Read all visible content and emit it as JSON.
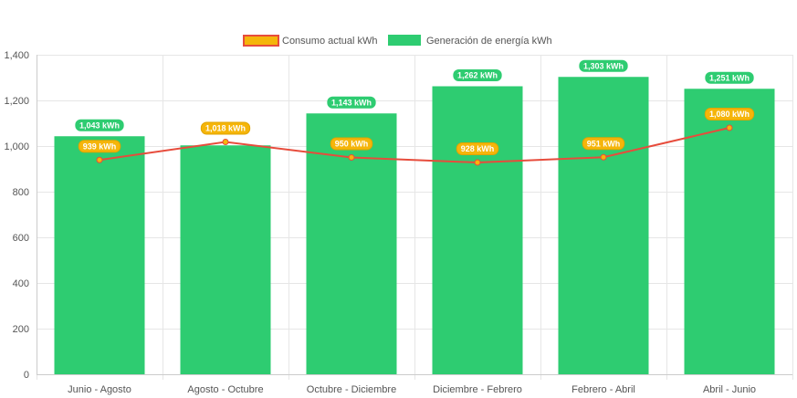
{
  "chart_data": {
    "type": "bar",
    "title": "",
    "xlabel": "",
    "ylabel": "",
    "categories": [
      "Junio - Agosto",
      "Agosto - Octubre",
      "Octubre - Diciembre",
      "Diciembre - Febrero",
      "Febrero - Abril",
      "Abril - Junio"
    ],
    "ylim": [
      0,
      1400
    ],
    "yticks": [
      "0",
      "200",
      "400",
      "600",
      "800",
      "1,000",
      "1,200",
      "1,400"
    ],
    "ytick_values": [
      0,
      200,
      400,
      600,
      800,
      1000,
      1200,
      1400
    ],
    "grid": true,
    "legend_position": "top-center",
    "series": [
      {
        "name": "Consumo actual kWh",
        "type": "line",
        "color": "#e74c3c",
        "marker_color": "#f5b50a",
        "values": [
          939,
          1018,
          950,
          928,
          951,
          1080
        ],
        "labels": [
          "939 kWh",
          "1,018 kWh",
          "950 kWh",
          "928 kWh",
          "951 kWh",
          "1,080 kWh"
        ]
      },
      {
        "name": "Generación de energía kWh",
        "type": "bar",
        "color": "#2ecc71",
        "values": [
          1043,
          1003,
          1143,
          1262,
          1303,
          1251
        ],
        "labels": [
          "1,043 kWh",
          "",
          "1,143 kWh",
          "1,262 kWh",
          "1,303 kWh",
          "1,251 kWh"
        ]
      }
    ]
  }
}
